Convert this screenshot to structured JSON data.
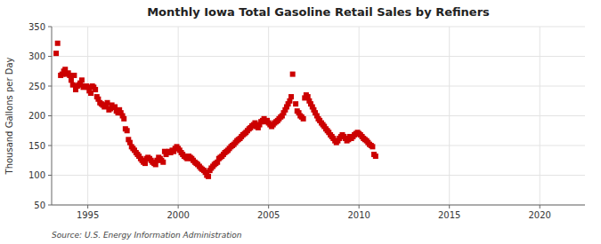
{
  "chart_data": {
    "type": "scatter",
    "title": "Monthly Iowa Total Gasoline Retail Sales by Refiners",
    "y_label": "Thousand Gallons per Day",
    "source": "Source: U.S. Energy Information Administration",
    "color": "#cc0000",
    "marker": "square",
    "grid": true,
    "xlim": [
      1993.0,
      2022.5
    ],
    "ylim": [
      50,
      350
    ],
    "xticks": [
      1995,
      2000,
      2005,
      2010,
      2015,
      2020
    ],
    "yticks": [
      50,
      100,
      150,
      200,
      250,
      300,
      350
    ],
    "x": [
      1993.25,
      1993.33,
      1993.5,
      1993.58,
      1993.67,
      1993.75,
      1993.83,
      1993.92,
      1994.0,
      1994.08,
      1994.17,
      1994.25,
      1994.33,
      1994.42,
      1994.5,
      1994.58,
      1994.67,
      1994.75,
      1994.83,
      1994.92,
      1995.0,
      1995.08,
      1995.17,
      1995.25,
      1995.33,
      1995.42,
      1995.5,
      1995.58,
      1995.67,
      1995.75,
      1995.83,
      1995.92,
      1996.0,
      1996.08,
      1996.17,
      1996.25,
      1996.33,
      1996.42,
      1996.5,
      1996.58,
      1996.67,
      1996.75,
      1996.83,
      1996.92,
      1997.0,
      1997.08,
      1997.17,
      1997.25,
      1997.33,
      1997.42,
      1997.5,
      1997.58,
      1997.67,
      1997.75,
      1997.83,
      1997.92,
      1998.0,
      1998.08,
      1998.17,
      1998.25,
      1998.33,
      1998.42,
      1998.5,
      1998.58,
      1998.67,
      1998.75,
      1998.83,
      1998.92,
      1999.0,
      1999.08,
      1999.17,
      1999.25,
      1999.33,
      1999.42,
      1999.5,
      1999.58,
      1999.67,
      1999.75,
      1999.83,
      1999.92,
      2000.0,
      2000.08,
      2000.17,
      2000.25,
      2000.33,
      2000.42,
      2000.5,
      2000.58,
      2000.67,
      2000.75,
      2000.83,
      2000.92,
      2001.0,
      2001.08,
      2001.17,
      2001.25,
      2001.33,
      2001.42,
      2001.5,
      2001.58,
      2001.67,
      2001.75,
      2001.83,
      2001.92,
      2002.0,
      2002.08,
      2002.17,
      2002.25,
      2002.33,
      2002.42,
      2002.5,
      2002.58,
      2002.67,
      2002.75,
      2002.83,
      2002.92,
      2003.0,
      2003.08,
      2003.17,
      2003.25,
      2003.33,
      2003.42,
      2003.5,
      2003.58,
      2003.67,
      2003.75,
      2003.83,
      2003.92,
      2004.0,
      2004.08,
      2004.17,
      2004.25,
      2004.33,
      2004.42,
      2004.5,
      2004.58,
      2004.67,
      2004.75,
      2004.83,
      2004.92,
      2005.0,
      2005.08,
      2005.17,
      2005.25,
      2005.33,
      2005.42,
      2005.5,
      2005.58,
      2005.67,
      2005.75,
      2005.83,
      2005.92,
      2006.0,
      2006.08,
      2006.17,
      2006.25,
      2006.33,
      2006.5,
      2006.58,
      2006.67,
      2006.75,
      2006.83,
      2006.92,
      2007.0,
      2007.08,
      2007.17,
      2007.25,
      2007.33,
      2007.42,
      2007.5,
      2007.58,
      2007.67,
      2007.75,
      2007.83,
      2007.92,
      2008.0,
      2008.08,
      2008.17,
      2008.25,
      2008.33,
      2008.42,
      2008.5,
      2008.58,
      2008.67,
      2008.75,
      2008.83,
      2008.92,
      2009.0,
      2009.08,
      2009.17,
      2009.25,
      2009.33,
      2009.42,
      2009.5,
      2009.58,
      2009.67,
      2009.75,
      2009.83,
      2009.92,
      2010.0,
      2010.08,
      2010.17,
      2010.25,
      2010.33,
      2010.42,
      2010.5,
      2010.58,
      2010.67,
      2010.75,
      2010.83,
      2010.92
    ],
    "values": [
      305,
      322,
      268,
      270,
      275,
      278,
      270,
      272,
      268,
      260,
      252,
      268,
      244,
      250,
      252,
      255,
      260,
      248,
      250,
      250,
      248,
      242,
      238,
      250,
      248,
      244,
      232,
      228,
      222,
      220,
      218,
      215,
      218,
      222,
      210,
      212,
      218,
      214,
      215,
      208,
      205,
      210,
      205,
      200,
      195,
      178,
      175,
      160,
      155,
      148,
      145,
      142,
      138,
      135,
      132,
      128,
      125,
      122,
      120,
      128,
      130,
      128,
      125,
      122,
      120,
      118,
      125,
      130,
      128,
      125,
      122,
      140,
      135,
      138,
      140,
      138,
      142,
      140,
      145,
      148,
      145,
      142,
      138,
      135,
      132,
      130,
      128,
      132,
      130,
      128,
      125,
      122,
      120,
      118,
      115,
      112,
      110,
      108,
      105,
      100,
      98,
      108,
      112,
      115,
      118,
      120,
      122,
      128,
      130,
      132,
      135,
      138,
      140,
      142,
      145,
      148,
      150,
      152,
      155,
      158,
      160,
      162,
      165,
      168,
      170,
      172,
      175,
      178,
      180,
      183,
      185,
      188,
      182,
      180,
      185,
      190,
      192,
      195,
      190,
      192,
      188,
      185,
      182,
      185,
      188,
      190,
      192,
      195,
      198,
      200,
      205,
      210,
      215,
      220,
      225,
      232,
      270,
      220,
      208,
      205,
      200,
      198,
      195,
      230,
      235,
      232,
      225,
      220,
      215,
      210,
      205,
      200,
      195,
      192,
      188,
      185,
      182,
      178,
      175,
      172,
      168,
      165,
      162,
      158,
      155,
      158,
      162,
      165,
      168,
      165,
      162,
      158,
      160,
      165,
      162,
      165,
      168,
      170,
      172,
      170,
      168,
      165,
      162,
      160,
      158,
      155,
      152,
      150,
      148,
      135,
      132
    ]
  }
}
